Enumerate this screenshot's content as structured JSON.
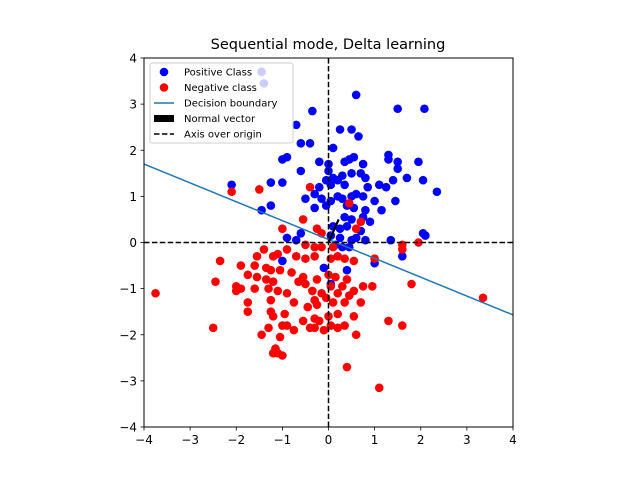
{
  "chart_data": {
    "type": "scatter",
    "title": "Sequential mode, Delta learning",
    "xlabel": "",
    "ylabel": "",
    "xlim": [
      -4,
      4
    ],
    "ylim": [
      -4,
      4
    ],
    "xticks": [
      -4,
      -3,
      -2,
      -1,
      0,
      1,
      2,
      3,
      4
    ],
    "yticks": [
      -4,
      -3,
      -2,
      -1,
      0,
      1,
      2,
      3,
      4
    ],
    "xtick_labels": [
      "−4",
      "−3",
      "−2",
      "−1",
      "0",
      "1",
      "2",
      "3",
      "4"
    ],
    "ytick_labels": [
      "−4",
      "−3",
      "−2",
      "−1",
      "0",
      "1",
      "2",
      "3",
      "4"
    ],
    "grid": false,
    "legend_position": "top-left",
    "colors": {
      "positive": "#0000ff",
      "negative": "#ff0000",
      "boundary": "#1f77b4",
      "normal_vector": "#000000",
      "axis_origin": "#000000"
    },
    "legend": [
      {
        "label": "Positive Class",
        "kind": "marker",
        "color": "#0000ff"
      },
      {
        "label": "Negative class",
        "kind": "marker",
        "color": "#ff0000"
      },
      {
        "label": "Decision boundary",
        "kind": "line",
        "color": "#1f77b4"
      },
      {
        "label": "Normal vector",
        "kind": "patch",
        "color": "#000000"
      },
      {
        "label": "Axis over origin",
        "kind": "dashed",
        "color": "#000000"
      }
    ],
    "decision_boundary": {
      "x": [
        -4,
        4
      ],
      "y": [
        1.7,
        -1.57
      ]
    },
    "normal_vector": {
      "from": [
        0,
        0
      ],
      "to": [
        0.22,
        0.5
      ]
    },
    "series": [
      {
        "name": "Positive Class",
        "points": [
          [
            -1.45,
            3.7
          ],
          [
            -1.4,
            3.45
          ],
          [
            -0.35,
            2.85
          ],
          [
            0.6,
            3.2
          ],
          [
            1.5,
            2.9
          ],
          [
            2.08,
            2.9
          ],
          [
            -0.7,
            2.55
          ],
          [
            0.25,
            2.45
          ],
          [
            0.65,
            2.3
          ],
          [
            0.5,
            2.45
          ],
          [
            -0.6,
            2.15
          ],
          [
            -0.4,
            2.15
          ],
          [
            -1,
            1.8
          ],
          [
            -0.9,
            1.85
          ],
          [
            0.1,
            2.05
          ],
          [
            0.45,
            1.8
          ],
          [
            0.35,
            1.75
          ],
          [
            0.55,
            1.85
          ],
          [
            0.75,
            1.7
          ],
          [
            1.3,
            1.9
          ],
          [
            1.3,
            1.8
          ],
          [
            1.5,
            1.75
          ],
          [
            1.95,
            1.75
          ],
          [
            1.5,
            1.6
          ],
          [
            -0.6,
            1.55
          ],
          [
            -0.2,
            1.75
          ],
          [
            0,
            1.7
          ],
          [
            0,
            1.55
          ],
          [
            -0.05,
            1.35
          ],
          [
            0.1,
            1.4
          ],
          [
            0.3,
            1.45
          ],
          [
            0.2,
            1.35
          ],
          [
            0.5,
            1.5
          ],
          [
            0.7,
            1.5
          ],
          [
            0.8,
            1.4
          ],
          [
            1.4,
            1.35
          ],
          [
            1.7,
            1.4
          ],
          [
            2.05,
            1.35
          ],
          [
            -1.25,
            1.3
          ],
          [
            -1,
            1.3
          ],
          [
            -0.2,
            1.2
          ],
          [
            0.05,
            1.25
          ],
          [
            0.35,
            1.25
          ],
          [
            0.85,
            1.2
          ],
          [
            1.1,
            1.25
          ],
          [
            1.25,
            1.2
          ],
          [
            2.35,
            1.1
          ],
          [
            -2.1,
            1.25
          ],
          [
            -0.5,
            0.95
          ],
          [
            -0.3,
            1.05
          ],
          [
            -0.15,
            0.95
          ],
          [
            0.05,
            0.9
          ],
          [
            0.2,
            1.0
          ],
          [
            0.3,
            0.95
          ],
          [
            0.5,
            1.0
          ],
          [
            0.6,
            1.05
          ],
          [
            0.75,
            1.0
          ],
          [
            1.0,
            0.9
          ],
          [
            1.45,
            0.9
          ],
          [
            -1.25,
            0.8
          ],
          [
            -0.3,
            0.75
          ],
          [
            -0.05,
            0.8
          ],
          [
            0.4,
            0.8
          ],
          [
            0.55,
            0.75
          ],
          [
            0.8,
            0.7
          ],
          [
            1.15,
            0.7
          ],
          [
            -1.45,
            0.7
          ],
          [
            0.35,
            0.55
          ],
          [
            0.5,
            0.5
          ],
          [
            0.75,
            0.55
          ],
          [
            0.9,
            0.45
          ],
          [
            0.1,
            0.35
          ],
          [
            0.25,
            0.3
          ],
          [
            0.4,
            0.35
          ],
          [
            0.7,
            0.25
          ],
          [
            -0.9,
            0.1
          ],
          [
            -0.7,
            0.05
          ],
          [
            -0.6,
            0.2
          ],
          [
            0.05,
            0.15
          ],
          [
            0.25,
            0.1
          ],
          [
            0.5,
            0.05
          ],
          [
            0.6,
            0.1
          ],
          [
            0.8,
            0.05
          ],
          [
            1.35,
            0.05
          ],
          [
            0.15,
            -0.05
          ],
          [
            0.3,
            -0.1
          ],
          [
            0.45,
            -0.1
          ],
          [
            2.05,
            0.2
          ],
          [
            2.1,
            0.15
          ],
          [
            -1,
            -0.4
          ],
          [
            -0.1,
            -0.55
          ],
          [
            0.4,
            -0.6
          ],
          [
            1.0,
            -0.45
          ],
          [
            1.6,
            -0.3
          ],
          [
            0.05,
            -0.9
          ]
        ]
      },
      {
        "name": "Negative class",
        "points": [
          [
            -1.5,
            1.15
          ],
          [
            -2.1,
            1.1
          ],
          [
            -0.4,
            1.2
          ],
          [
            -0.55,
            0.5
          ],
          [
            0.45,
            0.85
          ],
          [
            -0.25,
            0.3
          ],
          [
            -0.15,
            0.2
          ],
          [
            -1.0,
            0.3
          ],
          [
            0.7,
            0.45
          ],
          [
            0.6,
            0.3
          ],
          [
            -0.5,
            -0.05
          ],
          [
            -0.3,
            -0.1
          ],
          [
            -0.15,
            -0.1
          ],
          [
            0.1,
            -0.1
          ],
          [
            1.6,
            -0.05
          ],
          [
            1.95,
            0.0
          ],
          [
            -1.4,
            -0.15
          ],
          [
            -1.55,
            -0.3
          ],
          [
            -1.2,
            -0.3
          ],
          [
            -1.1,
            -0.25
          ],
          [
            -0.9,
            -0.15
          ],
          [
            -0.7,
            -0.3
          ],
          [
            -0.5,
            -0.35
          ],
          [
            -0.3,
            -0.3
          ],
          [
            0.05,
            -0.35
          ],
          [
            0.2,
            -0.3
          ],
          [
            0.35,
            -0.35
          ],
          [
            0.55,
            -0.4
          ],
          [
            1.0,
            -0.35
          ],
          [
            1.6,
            -0.15
          ],
          [
            -2.35,
            -0.4
          ],
          [
            -1.9,
            -0.5
          ],
          [
            -1.6,
            -0.5
          ],
          [
            -1.35,
            -0.55
          ],
          [
            -1.25,
            -0.6
          ],
          [
            -1.05,
            -0.6
          ],
          [
            -0.8,
            -0.65
          ],
          [
            -0.55,
            -0.75
          ],
          [
            -0.25,
            -0.8
          ],
          [
            0.0,
            -0.7
          ],
          [
            0.15,
            -0.75
          ],
          [
            0.4,
            -0.8
          ],
          [
            -1.75,
            -0.7
          ],
          [
            -1.55,
            -0.75
          ],
          [
            -1.35,
            -0.8
          ],
          [
            -1.2,
            -0.85
          ],
          [
            -0.65,
            -0.85
          ],
          [
            -0.5,
            -0.9
          ],
          [
            0.05,
            -0.95
          ],
          [
            0.3,
            -0.95
          ],
          [
            0.55,
            -1.05
          ],
          [
            0.75,
            -0.95
          ],
          [
            0.95,
            -0.95
          ],
          [
            1.8,
            -0.9
          ],
          [
            -2.45,
            -0.85
          ],
          [
            -2.0,
            -0.95
          ],
          [
            -1.9,
            -1.0
          ],
          [
            -1.6,
            -1.0
          ],
          [
            -1.3,
            -1.0
          ],
          [
            -1.1,
            -1.05
          ],
          [
            -0.9,
            -1.1
          ],
          [
            -0.35,
            -1.05
          ],
          [
            -0.15,
            -1.1
          ],
          [
            0.2,
            -1.1
          ],
          [
            0.45,
            -1.15
          ],
          [
            -3.75,
            -1.1
          ],
          [
            -1.25,
            -1.25
          ],
          [
            -0.75,
            -1.3
          ],
          [
            -0.3,
            -1.25
          ],
          [
            -0.05,
            -1.2
          ],
          [
            -2.0,
            -1.05
          ],
          [
            -1.75,
            -1.3
          ],
          [
            -1.75,
            -1.5
          ],
          [
            -1.25,
            -1.5
          ],
          [
            -1.2,
            -1.6
          ],
          [
            -0.95,
            -1.55
          ],
          [
            -0.45,
            -1.4
          ],
          [
            -0.25,
            -1.35
          ],
          [
            0.1,
            -1.3
          ],
          [
            0.35,
            -1.3
          ],
          [
            0.7,
            -1.3
          ],
          [
            -2.5,
            -1.85
          ],
          [
            -1.3,
            -1.85
          ],
          [
            -1.0,
            -1.8
          ],
          [
            -0.9,
            -1.8
          ],
          [
            -0.55,
            -1.7
          ],
          [
            -0.3,
            -1.65
          ],
          [
            -0.2,
            -1.7
          ],
          [
            0.0,
            -1.6
          ],
          [
            0.2,
            -1.55
          ],
          [
            0.55,
            -1.6
          ],
          [
            1.3,
            -1.7
          ],
          [
            1.6,
            -1.8
          ],
          [
            -1.45,
            -2.0
          ],
          [
            -1.05,
            -2.05
          ],
          [
            -0.75,
            -1.9
          ],
          [
            -0.4,
            -1.85
          ],
          [
            -0.3,
            -1.85
          ],
          [
            -0.1,
            -1.9
          ],
          [
            0.05,
            -1.8
          ],
          [
            0.2,
            -1.85
          ],
          [
            0.35,
            -1.8
          ],
          [
            0.6,
            -2.0
          ],
          [
            -1.15,
            -2.3
          ],
          [
            -1.1,
            -2.4
          ],
          [
            -1.2,
            -2.4
          ],
          [
            -1.0,
            -2.45
          ],
          [
            0.4,
            -2.7
          ],
          [
            1.1,
            -3.15
          ],
          [
            3.35,
            -1.2
          ]
        ]
      }
    ]
  }
}
